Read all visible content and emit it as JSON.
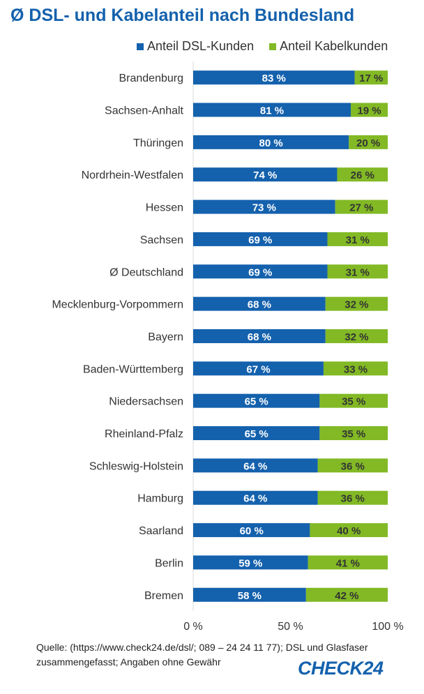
{
  "title": "Ø DSL- und Kabelanteil nach Bundesland",
  "legend": {
    "dsl_label": "Anteil DSL-Kunden",
    "cable_label": "Anteil Kabelkunden"
  },
  "colors": {
    "dsl": "#1461ad",
    "cable": "#82b925",
    "title": "#1461ad"
  },
  "chart_data": {
    "type": "bar",
    "orientation": "horizontal",
    "stacked": true,
    "categories": [
      "Brandenburg",
      "Sachsen-Anhalt",
      "Thüringen",
      "Nordrhein-Westfalen",
      "Hessen",
      "Sachsen",
      "Ø Deutschland",
      "Mecklenburg-Vorpommern",
      "Bayern",
      "Baden-Württemberg",
      "Niedersachsen",
      "Rheinland-Pfalz",
      "Schleswig-Holstein",
      "Hamburg",
      "Saarland",
      "Berlin",
      "Bremen"
    ],
    "series": [
      {
        "name": "Anteil DSL-Kunden",
        "values": [
          83,
          81,
          80,
          74,
          73,
          69,
          69,
          68,
          68,
          67,
          65,
          65,
          64,
          64,
          60,
          59,
          58
        ]
      },
      {
        "name": "Anteil Kabelkunden",
        "values": [
          17,
          19,
          20,
          26,
          27,
          31,
          31,
          32,
          32,
          33,
          35,
          35,
          36,
          36,
          40,
          41,
          42
        ]
      }
    ],
    "value_labels": {
      "dsl": [
        "83 %",
        "81 %",
        "80 %",
        "74 %",
        "73 %",
        "69 %",
        "69 %",
        "68 %",
        "68 %",
        "67 %",
        "65 %",
        "65 %",
        "64 %",
        "64 %",
        "60 %",
        "59 %",
        "58 %"
      ],
      "cable": [
        "17 %",
        "19 %",
        "20 %",
        "26 %",
        "27 %",
        "31 %",
        "31 %",
        "32 %",
        "32 %",
        "33 %",
        "35 %",
        "35 %",
        "36 %",
        "36 %",
        "40 %",
        "41 %",
        "42 %"
      ]
    },
    "xlim": [
      0,
      100
    ],
    "x_ticks": [
      "0 %",
      "50 %",
      "100 %"
    ],
    "legend_position": "top-right",
    "grid": false
  },
  "footer": {
    "line1": "Quelle: (https://www.check24.de/dsl/; 089 – 24 24 11 77); DSL und Glasfaser",
    "line2": "zusammengefasst; Angaben ohne Gewähr"
  },
  "logo_text": "CHECK24"
}
